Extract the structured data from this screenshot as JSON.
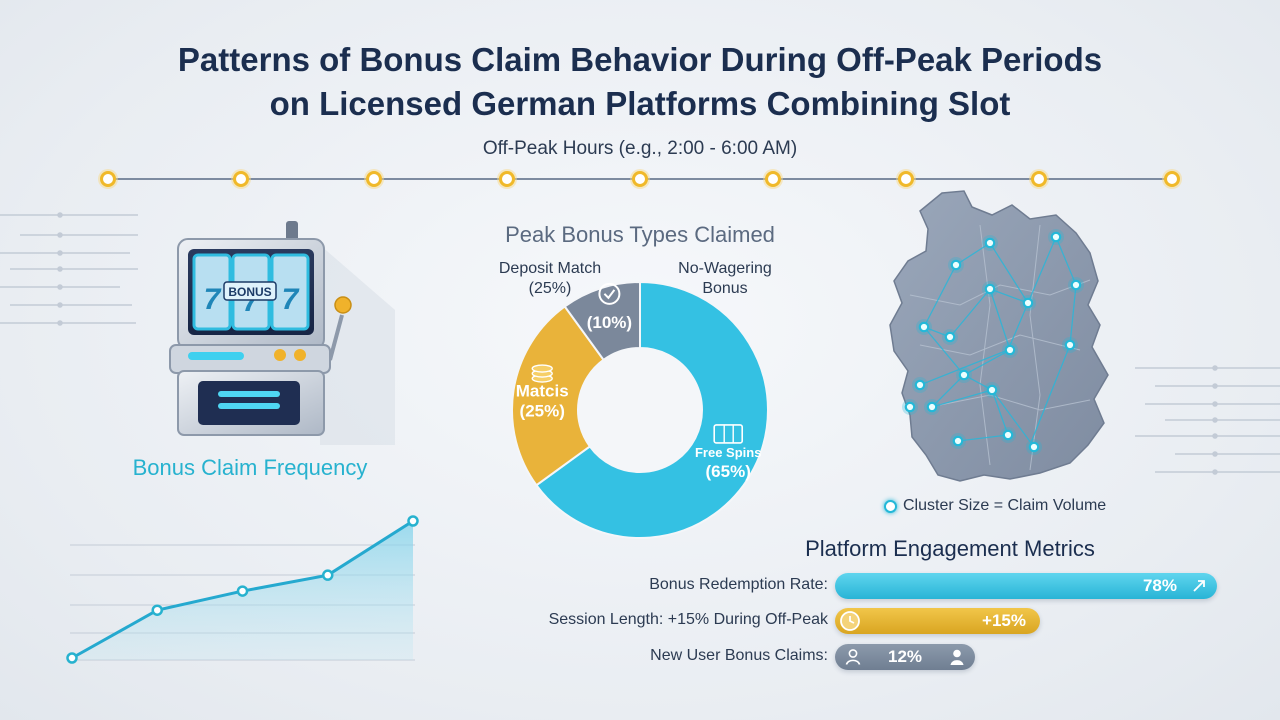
{
  "title": {
    "line1": "Patterns of Bonus Claim Behavior During Off-Peak Periods",
    "line2": "on Licensed German Platforms Combining Slot"
  },
  "timeline": {
    "label": "Off-Peak Hours (e.g., 2:00 - 6:00 AM)",
    "point_count": 9,
    "dot_color": "#f0b92a",
    "line_color": "#7d8ba0"
  },
  "slot_machine": {
    "icon": "slot-machine-icon",
    "reel_text": "BONUS"
  },
  "frequency_chart": {
    "label": "Bonus Claim Frequency",
    "color": "#27b2cf",
    "values": [
      0,
      1.5,
      2.1,
      2.6,
      4.3
    ]
  },
  "pie": {
    "title": "Peak Bonus Types Claimed",
    "outside_labels": {
      "deposit_match": "Deposit Match",
      "deposit_match_pct": "(25%)",
      "no_wagering_line1": "No-Wagering",
      "no_wagering_line2": "Bonus"
    },
    "segments": [
      {
        "label": "Free Spins",
        "value": 65,
        "text": "(65%)",
        "color": "#34c1e3",
        "icon": "slot-reels-icon"
      },
      {
        "label": "Matcis",
        "value": 25,
        "text": "(25%)",
        "color": "#e9b33a",
        "icon": "coin-stack-icon"
      },
      {
        "label": "",
        "value": 10,
        "text": "(10%)",
        "color": "#7b889b",
        "icon": "checkmark-icon"
      }
    ]
  },
  "map": {
    "icon": "germany-map-icon",
    "legend": "Cluster Size = Claim Volume",
    "fill": "#8e9bb0",
    "node_color": "#23b8d8"
  },
  "metrics": {
    "title": "Platform Engagement Metrics",
    "items": [
      {
        "label": "Bonus Redemption Rate:",
        "value_text": "78%",
        "value": 78,
        "color": "#34c1e3",
        "icon": "arrow-expand-icon"
      },
      {
        "label": "Session Length: +15% During Off-Peak",
        "value_text": "+15%",
        "value": 15,
        "color": "#e0ab2b",
        "icon": "clock-icon"
      },
      {
        "label": "New User Bonus Claims:",
        "value_text": "12%",
        "value": 12,
        "color": "#7b889b",
        "icon": "user-icon"
      }
    ]
  }
}
